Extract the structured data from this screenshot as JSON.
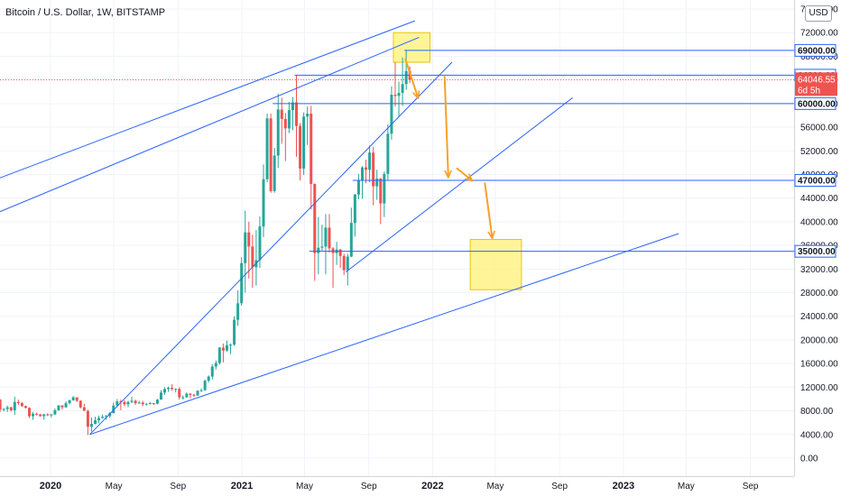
{
  "header": {
    "symbol_title": "Bitcoin / U.S. Dollar, 1W, BITSTAMP",
    "currency_button": "USD"
  },
  "colors": {
    "up": "#26a69a",
    "down": "#ef5350",
    "trendline": "#2962ff",
    "arrow": "#f7a128",
    "zone_fill": "#fff176",
    "zone_stroke": "#e6c800",
    "current_price_bg": "#ef5350",
    "axis_text": "#131722"
  },
  "chart_data": {
    "type": "candlestick",
    "title": "Bitcoin / U.S. Dollar, 1W, BITSTAMP",
    "x_axis": {
      "tick_labels": [
        "2020",
        "May",
        "Sep",
        "2021",
        "May",
        "Sep",
        "2022",
        "May",
        "Sep",
        "2023",
        "May",
        "Sep"
      ],
      "tick_dates": [
        "2020-01",
        "2020-05",
        "2020-09",
        "2021-01",
        "2021-05",
        "2021-09",
        "2022-01",
        "2022-05",
        "2022-09",
        "2023-01",
        "2023-05",
        "2023-09"
      ]
    },
    "y_axis": {
      "tick_labels": [
        "0.00",
        "4000.00",
        "8000.00",
        "12000.00",
        "16000.00",
        "20000.00",
        "24000.00",
        "28000.00",
        "32000.00",
        "36000.00",
        "40000.00",
        "44000.00",
        "48000.00",
        "52000.00",
        "56000.00",
        "60000.00",
        "64000.00",
        "68000.00",
        "72000.00",
        "76000.00"
      ],
      "tick_values": [
        0,
        4000,
        8000,
        12000,
        16000,
        20000,
        24000,
        28000,
        32000,
        36000,
        40000,
        44000,
        48000,
        52000,
        56000,
        60000,
        64000,
        68000,
        72000,
        76000
      ],
      "range": [
        -2000,
        78000
      ]
    },
    "price_labels": [
      {
        "value": 69000,
        "text": "69000.00",
        "style": "outline"
      },
      {
        "value": 64800,
        "text": "64800.00",
        "style": "outline"
      },
      {
        "value": 64046.55,
        "text": "64046.55",
        "countdown": "6d 5h",
        "style": "current"
      },
      {
        "value": 60000,
        "text": "60000.00",
        "style": "outline"
      },
      {
        "value": 47000,
        "text": "47000.00",
        "style": "outline"
      },
      {
        "value": 35000,
        "text": "35000.00",
        "style": "outline"
      }
    ],
    "horizontal_lines": [
      {
        "value": 69000,
        "from": "2021-11-08",
        "to": "2023-12-31"
      },
      {
        "value": 64800,
        "from": "2021-04-12",
        "to": "2023-12-31"
      },
      {
        "value": 60000,
        "from": "2021-03-01",
        "to": "2023-12-31"
      },
      {
        "value": 47000,
        "from": "2021-08-01",
        "to": "2023-12-31"
      },
      {
        "value": 35000,
        "from": "2021-05-10",
        "to": "2023-12-31"
      }
    ],
    "trend_lines": [
      {
        "from": [
          "2019-07-01",
          44500
        ],
        "to": [
          "2021-11-28",
          74000
        ]
      },
      {
        "from": [
          "2019-07-01",
          38500
        ],
        "to": [
          "2021-12-06",
          71200
        ]
      },
      {
        "from": [
          "2020-03-16",
          4000
        ],
        "to": [
          "2022-02-07",
          67000
        ]
      },
      {
        "from": [
          "2020-03-16",
          4000
        ],
        "to": [
          "2023-04-17",
          38000
        ]
      },
      {
        "from": [
          "2021-07-19",
          31500
        ],
        "to": [
          "2022-09-26",
          61000
        ]
      }
    ],
    "zones": [
      {
        "from": "2021-10-18",
        "to": "2021-12-27",
        "top": 72000,
        "bottom": 67000
      },
      {
        "from": "2022-03-14",
        "to": "2022-06-20",
        "top": 37000,
        "bottom": 28500
      }
    ],
    "arrows": [
      {
        "from": [
          "2021-11-10",
          67500
        ],
        "to": [
          "2021-12-04",
          61000
        ]
      },
      {
        "from": [
          "2022-01-24",
          64500
        ],
        "to": [
          "2022-01-31",
          47600
        ]
      },
      {
        "from": [
          "2022-02-17",
          49000
        ],
        "to": [
          "2022-03-17",
          47000
        ]
      },
      {
        "from": [
          "2022-04-11",
          46500
        ],
        "to": [
          "2022-04-25",
          37300
        ]
      }
    ],
    "current_price": 64046.55,
    "candles": [
      [
        "2019-07-01",
        10700,
        11600,
        9700,
        11300
      ],
      [
        "2019-07-08",
        11300,
        13200,
        10700,
        11900
      ],
      [
        "2019-07-15",
        11900,
        12000,
        9800,
        10500
      ],
      [
        "2019-07-22",
        10500,
        10900,
        9100,
        9600
      ],
      [
        "2019-07-29",
        9600,
        10600,
        9500,
        10400
      ],
      [
        "2019-08-05",
        10400,
        12300,
        10200,
        11800
      ],
      [
        "2019-08-12",
        11800,
        11900,
        9900,
        10300
      ],
      [
        "2019-08-19",
        10300,
        10900,
        9800,
        10100
      ],
      [
        "2019-08-26",
        10100,
        10400,
        9400,
        9600
      ],
      [
        "2019-09-02",
        9600,
        10900,
        9600,
        10500
      ],
      [
        "2019-09-09",
        10500,
        10600,
        9900,
        10300
      ],
      [
        "2019-09-16",
        10300,
        10400,
        9600,
        9900
      ],
      [
        "2019-09-23",
        9900,
        10000,
        7800,
        8200
      ],
      [
        "2019-09-30",
        8200,
        8500,
        7900,
        8300
      ],
      [
        "2019-10-07",
        8300,
        8900,
        7800,
        8600
      ],
      [
        "2019-10-14",
        8600,
        8700,
        7900,
        8100
      ],
      [
        "2019-10-21",
        8100,
        10400,
        7300,
        9500
      ],
      [
        "2019-10-28",
        9500,
        9900,
        9000,
        9300
      ],
      [
        "2019-11-04",
        9300,
        9500,
        8700,
        8800
      ],
      [
        "2019-11-11",
        8800,
        8900,
        8400,
        8500
      ],
      [
        "2019-11-18",
        8500,
        8600,
        6800,
        7100
      ],
      [
        "2019-11-25",
        7100,
        7800,
        6500,
        7500
      ],
      [
        "2019-12-02",
        7500,
        7700,
        7200,
        7400
      ],
      [
        "2019-12-09",
        7400,
        7500,
        7000,
        7100
      ],
      [
        "2019-12-16",
        7100,
        7500,
        6500,
        7400
      ],
      [
        "2019-12-23",
        7400,
        7600,
        7100,
        7300
      ],
      [
        "2019-12-30",
        7300,
        7500,
        6900,
        7400
      ],
      [
        "2020-01-06",
        7400,
        8400,
        7300,
        8100
      ],
      [
        "2020-01-13",
        8100,
        9000,
        8000,
        8900
      ],
      [
        "2020-01-20",
        8900,
        9000,
        8200,
        8600
      ],
      [
        "2020-01-27",
        8600,
        9600,
        8500,
        9300
      ],
      [
        "2020-02-03",
        9300,
        9900,
        9100,
        9800
      ],
      [
        "2020-02-10",
        9800,
        10500,
        9700,
        10300
      ],
      [
        "2020-02-17",
        10300,
        10300,
        9500,
        9700
      ],
      [
        "2020-02-24",
        9700,
        9800,
        8400,
        8600
      ],
      [
        "2020-03-02",
        8600,
        9200,
        8000,
        8000
      ],
      [
        "2020-03-09",
        8000,
        8200,
        3900,
        5300
      ],
      [
        "2020-03-16",
        5300,
        6900,
        4500,
        5800
      ],
      [
        "2020-03-23",
        5800,
        7000,
        5700,
        6400
      ],
      [
        "2020-03-30",
        6400,
        7200,
        5900,
        6800
      ],
      [
        "2020-04-06",
        6800,
        7400,
        6700,
        7000
      ],
      [
        "2020-04-13",
        7000,
        7300,
        6500,
        7100
      ],
      [
        "2020-04-20",
        7100,
        7800,
        6800,
        7600
      ],
      [
        "2020-04-27",
        7600,
        9400,
        7600,
        8900
      ],
      [
        "2020-05-04",
        8900,
        10000,
        8600,
        9600
      ],
      [
        "2020-05-11",
        9600,
        9900,
        8100,
        9500
      ],
      [
        "2020-05-18",
        9500,
        9800,
        8800,
        9100
      ],
      [
        "2020-05-25",
        9100,
        9700,
        8600,
        9500
      ],
      [
        "2020-06-01",
        9500,
        10400,
        9300,
        9700
      ],
      [
        "2020-06-08",
        9700,
        9900,
        9000,
        9300
      ],
      [
        "2020-06-15",
        9300,
        9700,
        9200,
        9400
      ],
      [
        "2020-06-22",
        9400,
        9700,
        8800,
        9100
      ],
      [
        "2020-06-29",
        9100,
        9300,
        8900,
        9200
      ],
      [
        "2020-07-06",
        9200,
        9500,
        9100,
        9300
      ],
      [
        "2020-07-13",
        9300,
        9300,
        9000,
        9200
      ],
      [
        "2020-07-20",
        9200,
        10000,
        9100,
        9900
      ],
      [
        "2020-07-27",
        9900,
        11500,
        9900,
        11100
      ],
      [
        "2020-08-03",
        11100,
        12000,
        10700,
        11700
      ],
      [
        "2020-08-10",
        11700,
        12100,
        11200,
        11900
      ],
      [
        "2020-08-17",
        11900,
        12500,
        11400,
        11700
      ],
      [
        "2020-08-24",
        11700,
        11800,
        11100,
        11700
      ],
      [
        "2020-08-31",
        11700,
        12000,
        9900,
        10300
      ],
      [
        "2020-09-07",
        10300,
        10600,
        9900,
        10300
      ],
      [
        "2020-09-14",
        10300,
        11100,
        10200,
        10900
      ],
      [
        "2020-09-21",
        10900,
        11000,
        10100,
        10700
      ],
      [
        "2020-09-28",
        10700,
        10900,
        10400,
        10600
      ],
      [
        "2020-10-05",
        10600,
        11500,
        10500,
        11400
      ],
      [
        "2020-10-12",
        11400,
        11800,
        11200,
        11500
      ],
      [
        "2020-10-19",
        11500,
        13300,
        11400,
        13100
      ],
      [
        "2020-10-26",
        13100,
        14000,
        12800,
        13800
      ],
      [
        "2020-11-02",
        13800,
        15900,
        13300,
        15500
      ],
      [
        "2020-11-09",
        15500,
        16500,
        15000,
        16100
      ],
      [
        "2020-11-16",
        16100,
        18800,
        15800,
        18700
      ],
      [
        "2020-11-23",
        18700,
        19400,
        16200,
        18200
      ],
      [
        "2020-11-30",
        18200,
        19900,
        18000,
        19100
      ],
      [
        "2020-12-07",
        19100,
        19400,
        17600,
        19200
      ],
      [
        "2020-12-14",
        19200,
        24000,
        19000,
        23400
      ],
      [
        "2020-12-21",
        23400,
        28400,
        22400,
        26200
      ],
      [
        "2020-12-28",
        26200,
        34000,
        25800,
        33000
      ],
      [
        "2021-01-04",
        33000,
        41900,
        28000,
        38200
      ],
      [
        "2021-01-11",
        38200,
        40000,
        30400,
        35800
      ],
      [
        "2021-01-18",
        35800,
        37800,
        28800,
        32300
      ],
      [
        "2021-01-25",
        32300,
        38600,
        29200,
        33500
      ],
      [
        "2021-02-01",
        33500,
        40900,
        32200,
        39200
      ],
      [
        "2021-02-08",
        39200,
        49700,
        37400,
        47200
      ],
      [
        "2021-02-15",
        47200,
        58300,
        46700,
        57500
      ],
      [
        "2021-02-22",
        57500,
        58300,
        44900,
        45200
      ],
      [
        "2021-03-01",
        45200,
        52500,
        44900,
        51200
      ],
      [
        "2021-03-08",
        51200,
        61700,
        49100,
        59000
      ],
      [
        "2021-03-15",
        59000,
        61000,
        53200,
        57400
      ],
      [
        "2021-03-22",
        57400,
        58400,
        50300,
        55800
      ],
      [
        "2021-03-29",
        55800,
        60300,
        55000,
        58900
      ],
      [
        "2021-04-05",
        58900,
        61100,
        55500,
        60200
      ],
      [
        "2021-04-12",
        60200,
        64800,
        51000,
        56200
      ],
      [
        "2021-04-19",
        56200,
        56700,
        47000,
        49000
      ],
      [
        "2021-04-26",
        49000,
        58500,
        47900,
        57800
      ],
      [
        "2021-05-03",
        57800,
        59500,
        53000,
        58300
      ],
      [
        "2021-05-10",
        58300,
        59600,
        42100,
        46400
      ],
      [
        "2021-05-17",
        46400,
        46500,
        30000,
        34700
      ],
      [
        "2021-05-24",
        34700,
        40800,
        31100,
        35600
      ],
      [
        "2021-05-31",
        35600,
        39500,
        35100,
        35800
      ],
      [
        "2021-06-07",
        35800,
        41300,
        31100,
        39000
      ],
      [
        "2021-06-14",
        39000,
        41300,
        34800,
        35500
      ],
      [
        "2021-06-21",
        35500,
        35700,
        28800,
        34700
      ],
      [
        "2021-06-28",
        34700,
        36600,
        32700,
        35300
      ],
      [
        "2021-07-05",
        35300,
        35400,
        32200,
        34200
      ],
      [
        "2021-07-12",
        34200,
        34600,
        31000,
        31800
      ],
      [
        "2021-07-19",
        31800,
        34600,
        29200,
        34100
      ],
      [
        "2021-07-26",
        34100,
        42400,
        34000,
        39800
      ],
      [
        "2021-08-02",
        39800,
        44700,
        37500,
        44600
      ],
      [
        "2021-08-09",
        44600,
        48100,
        43800,
        47000
      ],
      [
        "2021-08-16",
        47000,
        49400,
        43900,
        49200
      ],
      [
        "2021-08-23",
        49200,
        50500,
        46500,
        48800
      ],
      [
        "2021-08-30",
        48800,
        52900,
        46700,
        51700
      ],
      [
        "2021-09-06",
        51700,
        52700,
        42800,
        46000
      ],
      [
        "2021-09-13",
        46000,
        48800,
        43700,
        47300
      ],
      [
        "2021-09-20",
        47300,
        47400,
        39600,
        43100
      ],
      [
        "2021-09-27",
        43100,
        48500,
        40800,
        48100
      ],
      [
        "2021-10-04",
        48100,
        56500,
        47100,
        54900
      ],
      [
        "2021-10-11",
        54900,
        62900,
        53900,
        61500
      ],
      [
        "2021-10-18",
        61500,
        67000,
        59500,
        61300
      ],
      [
        "2021-10-25",
        61300,
        63700,
        57800,
        61800
      ],
      [
        "2021-11-01",
        61800,
        67800,
        59600,
        63300
      ],
      [
        "2021-11-08",
        63300,
        69000,
        62300,
        65500
      ],
      [
        "2021-11-15",
        65500,
        66300,
        63500,
        64046.55
      ]
    ]
  }
}
